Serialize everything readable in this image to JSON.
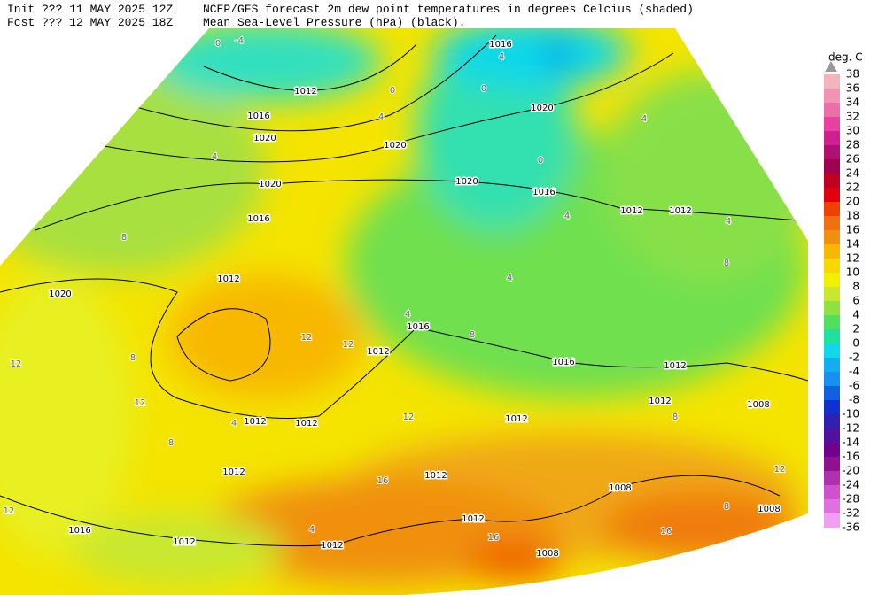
{
  "header": {
    "init": "Init  ??? 11 MAY 2025 12Z",
    "title": "NCEP/GFS forecast 2m dew point temperatures in degrees Celcius (shaded)",
    "forecast": "Fcst ??? 12 MAY 2025 18Z",
    "subtitle": "Mean Sea-Level Pressure (hPa) (black)."
  },
  "legend": {
    "unit": "deg. C",
    "labels": [
      38,
      36,
      34,
      32,
      30,
      28,
      26,
      24,
      22,
      20,
      18,
      16,
      14,
      12,
      10,
      8,
      6,
      4,
      2,
      0,
      -2,
      -4,
      -6,
      -8,
      -10,
      -12,
      -14,
      -16,
      -20,
      -24,
      -28,
      -32,
      -36
    ],
    "colors": [
      "#f4b4bc",
      "#f094b4",
      "#ec70a8",
      "#e840a0",
      "#d02090",
      "#b01070",
      "#a00050",
      "#c00020",
      "#e00010",
      "#f04000",
      "#f07010",
      "#f09010",
      "#f8b800",
      "#f8d800",
      "#f0f000",
      "#c8e830",
      "#90e040",
      "#50e060",
      "#20e0a0",
      "#10d8e8",
      "#10b0f0",
      "#1890f0",
      "#1060e0",
      "#1030d0",
      "#3020b0",
      "#5010a0",
      "#700090",
      "#901090",
      "#b030b0",
      "#d050d0",
      "#e070e0",
      "#f0a0f0"
    ]
  },
  "isobar_labels": [
    "1012",
    "1016",
    "1020",
    "1020",
    "1016",
    "1012",
    "1020",
    "1020",
    "1020",
    "1020",
    "1016",
    "1012",
    "1012",
    "1016",
    "1012",
    "1016",
    "1012",
    "1012",
    "1008",
    "1012",
    "1012",
    "1012",
    "1012",
    "1012",
    "1012",
    "1016",
    "1012",
    "1012",
    "1008",
    "1008",
    "1008",
    "1016"
  ],
  "contour_labels": [
    "0",
    "-4",
    "0",
    "4",
    "4",
    "0",
    "4",
    "0",
    "4",
    "4",
    "4",
    "8",
    "8",
    "12",
    "12",
    "12",
    "8",
    "12",
    "8",
    "12",
    "16",
    "16",
    "16",
    "12",
    "4",
    "4",
    "8",
    "8",
    "4",
    "8",
    "4",
    "12"
  ]
}
